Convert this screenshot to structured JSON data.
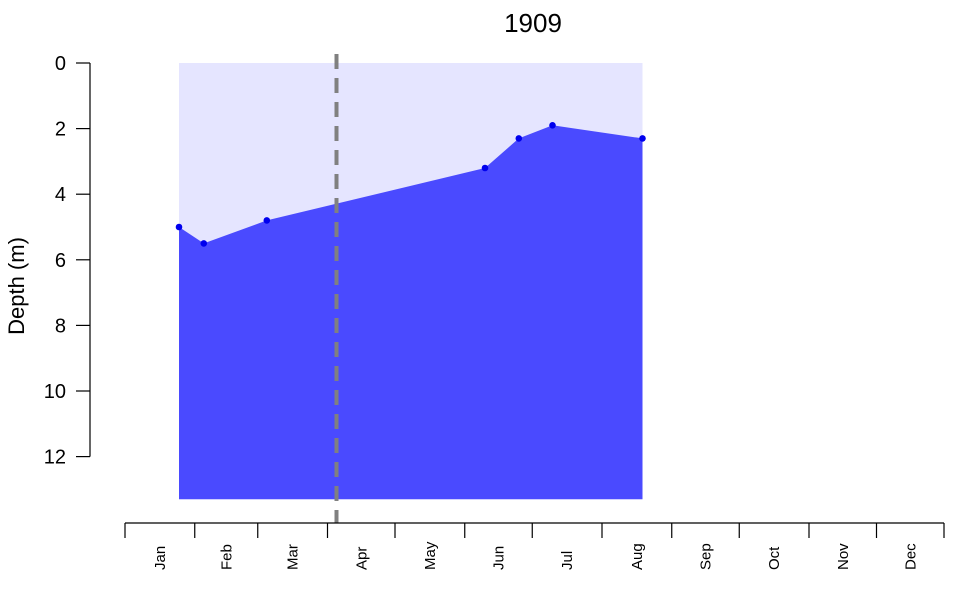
{
  "chart_data": {
    "type": "area",
    "title": "1909",
    "ylabel": "Depth (m)",
    "xlabel": "",
    "y_inverted": true,
    "ylim": [
      0,
      12
    ],
    "yticks": [
      0,
      2,
      4,
      6,
      8,
      10,
      12
    ],
    "ytick_labels": [
      "0",
      "2",
      "4",
      "6",
      "8",
      "10",
      "12"
    ],
    "months": [
      "Jan",
      "Feb",
      "Mar",
      "Apr",
      "May",
      "Jun",
      "Jul",
      "Aug",
      "Sep",
      "Oct",
      "Nov",
      "Dec"
    ],
    "bottom_depth": 13.3,
    "points": [
      {
        "x": "1909-01-25",
        "depth": 5.0
      },
      {
        "x": "1909-02-05",
        "depth": 5.5
      },
      {
        "x": "1909-03-05",
        "depth": 4.8
      },
      {
        "x": "1909-06-10",
        "depth": 3.2
      },
      {
        "x": "1909-06-25",
        "depth": 2.3
      },
      {
        "x": "1909-07-10",
        "depth": 1.9
      },
      {
        "x": "1909-08-19",
        "depth": 2.3
      }
    ],
    "reference_line": {
      "x": "1909-04-05",
      "style": "dashed",
      "color": "#808080"
    },
    "colors": {
      "background_region": "#e5e5ff",
      "fill": "#4a4aff",
      "points": "#0000ee",
      "axis": "#000000"
    }
  }
}
